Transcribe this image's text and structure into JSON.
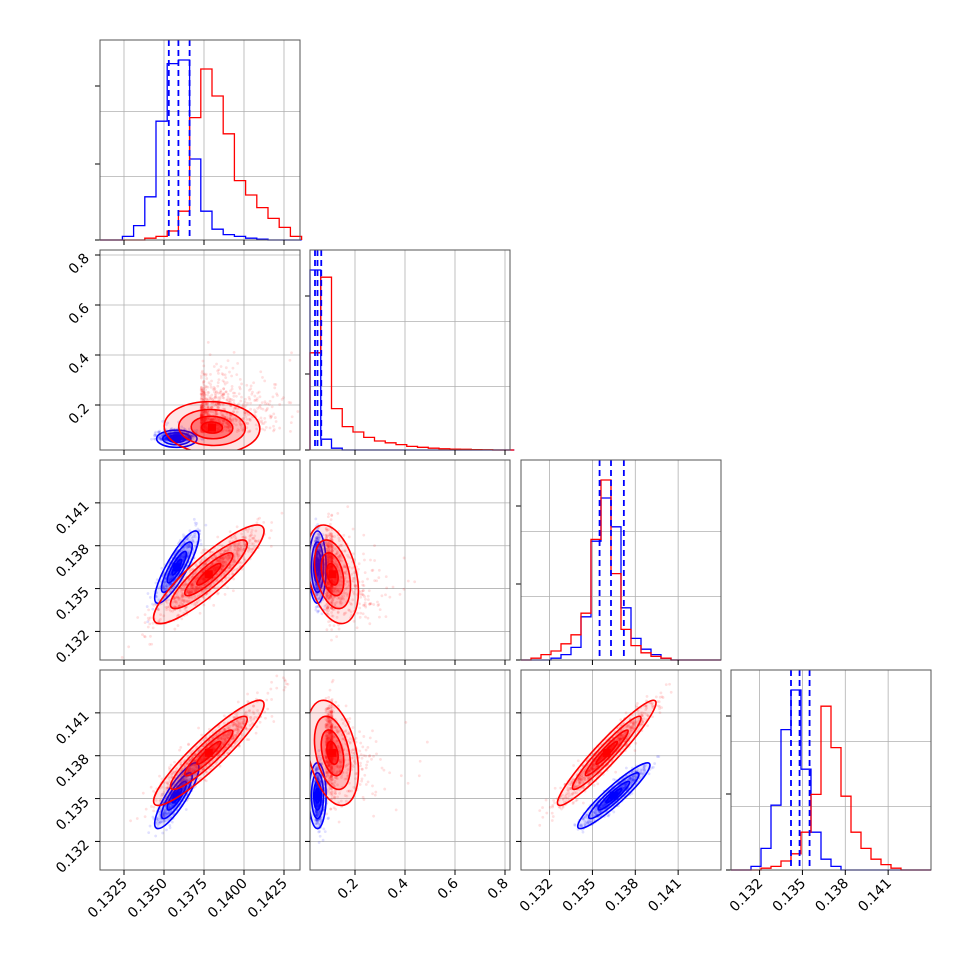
{
  "chart_data": {
    "type": "corner",
    "colors": {
      "blue": "#0000ff",
      "red": "#ff0000"
    },
    "grid": true,
    "parameters": [
      {
        "xlim": [
          0.131,
          0.1435
        ],
        "ticks": [
          0.1325,
          0.135,
          0.1375,
          0.14,
          0.1425
        ],
        "tick_labels": [
          "0.1325",
          "0.1350",
          "0.1375",
          "0.1400",
          "0.1425"
        ]
      },
      {
        "xlim": [
          0.02,
          0.82
        ],
        "ticks": [
          0.2,
          0.4,
          0.6,
          0.8
        ],
        "tick_labels": [
          "0.2",
          "0.4",
          "0.6",
          "0.8"
        ]
      },
      {
        "xlim": [
          0.13,
          0.144
        ],
        "ticks": [
          0.132,
          0.135,
          0.138,
          0.141
        ],
        "tick_labels": [
          "0.132",
          "0.135",
          "0.138",
          "0.141"
        ]
      },
      {
        "xlim": [
          0.13,
          0.144
        ],
        "ticks": [
          0.132,
          0.135,
          0.138,
          0.141
        ],
        "tick_labels": [
          "0.132",
          "0.135",
          "0.138",
          "0.141"
        ]
      }
    ],
    "y_ticks_left": {
      "row1": {
        "ticks": [
          0.2,
          0.4,
          0.6,
          0.8
        ],
        "tick_labels": [
          "0.2",
          "0.4",
          "0.6",
          "0.8"
        ]
      },
      "row2": {
        "ticks": [
          0.132,
          0.135,
          0.138,
          0.141
        ],
        "tick_labels": [
          "0.132",
          "0.135",
          "0.138",
          "0.141"
        ]
      },
      "row3": {
        "ticks": [
          0.132,
          0.135,
          0.138,
          0.141
        ],
        "tick_labels": [
          "0.132",
          "0.135",
          "0.138",
          "0.141"
        ]
      }
    },
    "histograms": [
      {
        "param": 0,
        "edges": [
          0.131,
          0.1317,
          0.1324,
          0.1331,
          0.1338,
          0.1345,
          0.1352,
          0.1359,
          0.1366,
          0.1373,
          0.138,
          0.1387,
          0.1394,
          0.1401,
          0.1408,
          0.1415,
          0.1422,
          0.1429,
          0.1436
        ],
        "blue": [
          0,
          0,
          0.02,
          0.08,
          0.24,
          0.66,
          0.98,
          1.0,
          0.45,
          0.16,
          0.06,
          0.03,
          0.02,
          0.01,
          0.005,
          0,
          0,
          0
        ],
        "red": [
          0,
          0,
          0,
          0,
          0.01,
          0.02,
          0.05,
          0.16,
          0.68,
          0.95,
          0.8,
          0.59,
          0.33,
          0.25,
          0.18,
          0.12,
          0.07,
          0.02
        ],
        "quantiles": [
          0.1353,
          0.1359,
          0.1366
        ]
      },
      {
        "param": 1,
        "edges": [
          0.02,
          0.063,
          0.106,
          0.149,
          0.192,
          0.235,
          0.278,
          0.321,
          0.364,
          0.407,
          0.45,
          0.493,
          0.536,
          0.579,
          0.622,
          0.665,
          0.708,
          0.751,
          0.794,
          0.837
        ],
        "blue": [
          1.0,
          0.06,
          0.01,
          0,
          0,
          0,
          0,
          0,
          0,
          0,
          0,
          0,
          0,
          0,
          0,
          0,
          0,
          0,
          0
        ],
        "red": [
          0.54,
          0.96,
          0.23,
          0.13,
          0.1,
          0.07,
          0.05,
          0.04,
          0.03,
          0.02,
          0.015,
          0.01,
          0.007,
          0.005,
          0.004,
          0.002,
          0.001,
          0,
          0
        ],
        "quantiles": [
          0.04,
          0.05,
          0.065
        ]
      },
      {
        "param": 2,
        "edges": [
          0.13,
          0.1307,
          0.1314,
          0.1321,
          0.1328,
          0.1335,
          0.1342,
          0.1349,
          0.1356,
          0.1363,
          0.137,
          0.1377,
          0.1384,
          0.1391,
          0.1398,
          0.1405,
          0.1412,
          0.1419,
          0.1426,
          0.1433,
          0.144
        ],
        "blue": [
          0,
          0,
          0,
          0.01,
          0.03,
          0.07,
          0.24,
          0.66,
          0.9,
          0.74,
          0.29,
          0.12,
          0.06,
          0.03,
          0.01,
          0,
          0,
          0,
          0,
          0
        ],
        "red": [
          0,
          0.01,
          0.03,
          0.05,
          0.09,
          0.14,
          0.26,
          0.67,
          1.0,
          0.48,
          0.17,
          0.08,
          0.04,
          0.02,
          0.01,
          0,
          0,
          0,
          0,
          0
        ],
        "quantiles": [
          0.1355,
          0.1363,
          0.1372
        ]
      },
      {
        "param": 3,
        "edges": [
          0.13,
          0.1307,
          0.1314,
          0.1321,
          0.1328,
          0.1335,
          0.1342,
          0.1349,
          0.1356,
          0.1363,
          0.137,
          0.1377,
          0.1384,
          0.1391,
          0.1398,
          0.1405,
          0.1412,
          0.1419,
          0.1426,
          0.1433,
          0.144
        ],
        "blue": [
          0,
          0,
          0.02,
          0.12,
          0.36,
          0.78,
          1.0,
          0.56,
          0.21,
          0.06,
          0.02,
          0,
          0,
          0,
          0,
          0,
          0,
          0,
          0,
          0
        ],
        "red": [
          0,
          0,
          0,
          0.01,
          0.02,
          0.05,
          0.09,
          0.21,
          0.42,
          0.91,
          0.68,
          0.41,
          0.21,
          0.12,
          0.06,
          0.03,
          0.01,
          0,
          0,
          0
        ],
        "quantiles": [
          0.1342,
          0.1348,
          0.1355
        ]
      }
    ],
    "scatter_panels": [
      {
        "row": 1,
        "col": 0,
        "blue": {
          "mean": [
            0.1358,
            0.065
          ],
          "sd": [
            0.00055,
            0.015
          ],
          "rho": 0.0,
          "skew": 0.0
        },
        "red": {
          "mean": [
            0.138,
            0.11
          ],
          "sd": [
            0.0013,
            0.045
          ],
          "rho": -0.05,
          "skew": 0.12
        }
      },
      {
        "row": 2,
        "col": 0,
        "blue": {
          "mean": [
            0.1358,
            0.1365
          ],
          "sd": [
            0.0006,
            0.0011
          ],
          "rho": 0.85,
          "skew": 0.0
        },
        "red": {
          "mean": [
            0.1378,
            0.136
          ],
          "sd": [
            0.0015,
            0.0015
          ],
          "rho": 0.88,
          "skew": 0.0
        }
      },
      {
        "row": 2,
        "col": 1,
        "blue": {
          "mean": [
            0.05,
            0.1365
          ],
          "sd": [
            0.015,
            0.0011
          ],
          "rho": 0.0,
          "skew": 0.0
        },
        "red": {
          "mean": [
            0.11,
            0.136
          ],
          "sd": [
            0.045,
            0.0015
          ],
          "rho": -0.35,
          "skew": 0.12
        }
      },
      {
        "row": 3,
        "col": 0,
        "blue": {
          "mean": [
            0.1358,
            0.1352
          ],
          "sd": [
            0.0006,
            0.001
          ],
          "rho": 0.85,
          "skew": 0.0
        },
        "red": {
          "mean": [
            0.1378,
            0.1382
          ],
          "sd": [
            0.0015,
            0.0016
          ],
          "rho": 0.92,
          "skew": 0.0
        }
      },
      {
        "row": 3,
        "col": 1,
        "blue": {
          "mean": [
            0.05,
            0.1352
          ],
          "sd": [
            0.015,
            0.001
          ],
          "rho": 0.0,
          "skew": 0.0
        },
        "red": {
          "mean": [
            0.11,
            0.1382
          ],
          "sd": [
            0.045,
            0.0016
          ],
          "rho": -0.35,
          "skew": 0.12
        }
      },
      {
        "row": 3,
        "col": 2,
        "blue": {
          "mean": [
            0.1365,
            0.1352
          ],
          "sd": [
            0.0011,
            0.001
          ],
          "rho": 0.93,
          "skew": 0.0
        },
        "red": {
          "mean": [
            0.136,
            0.1382
          ],
          "sd": [
            0.0015,
            0.0016
          ],
          "rho": 0.95,
          "skew": 0.0
        }
      }
    ]
  }
}
